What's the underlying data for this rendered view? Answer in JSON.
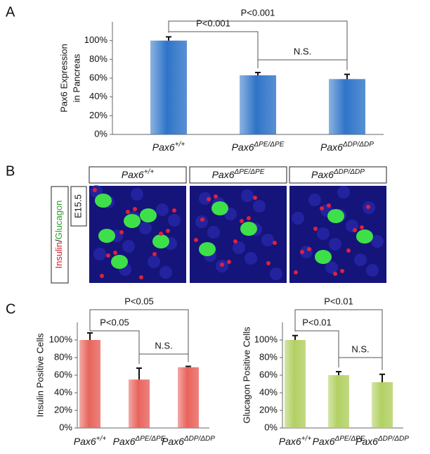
{
  "figure": {
    "panel_labels": [
      "A",
      "B",
      "C"
    ],
    "image_panel": {
      "columns": [
        "Pax6+/+",
        "Pax6ΔPE/ΔPE",
        "Pax6ΔDP/ΔDP"
      ],
      "stage": "E15.5",
      "stain_red": "Insulin",
      "separator": "/",
      "stain_green": "Glucagon"
    }
  },
  "chart_data": [
    {
      "type": "bar",
      "y_label": [
        "Pax6 Expression",
        "in Pancreas"
      ],
      "categories": [
        "Pax6+/+",
        "Pax6ΔPE/ΔPE",
        "Pax6ΔDP/ΔDP"
      ],
      "values": [
        100,
        63,
        59
      ],
      "errors": [
        4,
        3,
        5
      ],
      "color": "#2f74c8",
      "ylim": [
        0,
        120
      ],
      "yticks": [
        {
          "value": 0,
          "label": "0%"
        },
        {
          "value": 20,
          "label": "20%"
        },
        {
          "value": 40,
          "label": "40%"
        },
        {
          "value": 60,
          "label": "60%"
        },
        {
          "value": 80,
          "label": "80%"
        },
        {
          "value": 100,
          "label": "100%"
        }
      ],
      "annotations": [
        "P<0.001",
        "P<0.001",
        "N.S."
      ]
    },
    {
      "type": "bar",
      "y_label": [
        "Insulin Positive Cells"
      ],
      "categories": [
        "Pax6+/+",
        "Pax6ΔPE/ΔPE",
        "Pax6ΔDP/ΔDP"
      ],
      "values": [
        100,
        55,
        69
      ],
      "errors": [
        8,
        13,
        1
      ],
      "color": "#e8645c",
      "ylim": [
        0,
        120
      ],
      "yticks": [
        {
          "value": 0,
          "label": "0%"
        },
        {
          "value": 20,
          "label": "20%"
        },
        {
          "value": 40,
          "label": "40%"
        },
        {
          "value": 60,
          "label": "60%"
        },
        {
          "value": 80,
          "label": "80%"
        },
        {
          "value": 100,
          "label": "100%"
        }
      ],
      "annotations": [
        "P<0.05",
        "P<0.05",
        "N.S."
      ]
    },
    {
      "type": "bar",
      "y_label": [
        "Glucagon Positive Cells"
      ],
      "categories": [
        "Pax6+/+",
        "Pax6ΔPE/ΔPE",
        "Pax6ΔDP/ΔDP"
      ],
      "values": [
        100,
        60,
        52
      ],
      "errors": [
        5,
        4,
        9
      ],
      "color": "#b2d063",
      "ylim": [
        0,
        120
      ],
      "yticks": [
        {
          "value": 0,
          "label": "0%"
        },
        {
          "value": 20,
          "label": "20%"
        },
        {
          "value": 40,
          "label": "40%"
        },
        {
          "value": 60,
          "label": "60%"
        },
        {
          "value": 80,
          "label": "80%"
        },
        {
          "value": 100,
          "label": "100%"
        }
      ],
      "annotations": [
        "P<0.01",
        "P<0.01",
        "N.S."
      ]
    }
  ]
}
